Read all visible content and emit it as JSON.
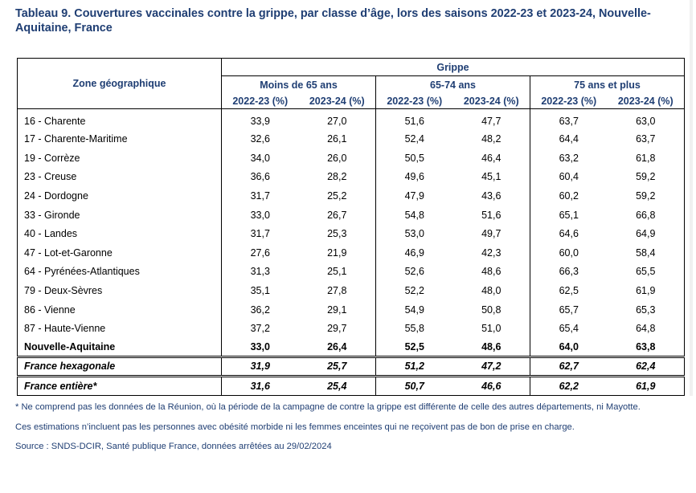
{
  "title": "Tableau 9. Couvertures vaccinales contre la grippe, par classe d’âge, lors des saisons 2022-23 et 2023-24, Nouvelle-Aquitaine, France",
  "table": {
    "zone_header": "Zone géographique",
    "group_header": "Grippe",
    "age_groups": [
      "Moins de 65 ans",
      "65-74 ans",
      "75 ans et plus"
    ],
    "season_headers": [
      "2022-23 (%)",
      "2023-24 (%)",
      "2022-23 (%)",
      "2023-24 (%)",
      "2022-23 (%)",
      "2023-24 (%)"
    ],
    "rows": [
      {
        "zone": "16 - Charente",
        "values": [
          "33,9",
          "27,0",
          "51,6",
          "47,7",
          "63,7",
          "63,0"
        ]
      },
      {
        "zone": "17 - Charente-Maritime",
        "values": [
          "32,6",
          "26,1",
          "52,4",
          "48,2",
          "64,4",
          "63,7"
        ]
      },
      {
        "zone": "19 - Corrèze",
        "values": [
          "34,0",
          "26,0",
          "50,5",
          "46,4",
          "63,2",
          "61,8"
        ]
      },
      {
        "zone": "23 - Creuse",
        "values": [
          "36,6",
          "28,2",
          "49,6",
          "45,1",
          "60,4",
          "59,2"
        ]
      },
      {
        "zone": "24 - Dordogne",
        "values": [
          "31,7",
          "25,2",
          "47,9",
          "43,6",
          "60,2",
          "59,2"
        ]
      },
      {
        "zone": "33 - Gironde",
        "values": [
          "33,0",
          "26,7",
          "54,8",
          "51,6",
          "65,1",
          "66,8"
        ]
      },
      {
        "zone": "40 - Landes",
        "values": [
          "31,7",
          "25,3",
          "53,0",
          "49,7",
          "64,6",
          "64,9"
        ]
      },
      {
        "zone": "47 - Lot-et-Garonne",
        "values": [
          "27,6",
          "21,9",
          "46,9",
          "42,3",
          "60,0",
          "58,4"
        ]
      },
      {
        "zone": "64 - Pyrénées-Atlantiques",
        "values": [
          "31,3",
          "25,1",
          "52,6",
          "48,6",
          "66,3",
          "65,5"
        ]
      },
      {
        "zone": "79 - Deux-Sèvres",
        "values": [
          "35,1",
          "27,8",
          "52,2",
          "48,0",
          "62,5",
          "61,9"
        ]
      },
      {
        "zone": "86 - Vienne",
        "values": [
          "36,2",
          "29,1",
          "54,9",
          "50,8",
          "65,7",
          "65,3"
        ]
      },
      {
        "zone": "87 - Haute-Vienne",
        "values": [
          "37,2",
          "29,7",
          "55,8",
          "51,0",
          "65,4",
          "64,8"
        ]
      }
    ],
    "region_row": {
      "zone": "Nouvelle-Aquitaine",
      "values": [
        "33,0",
        "26,4",
        "52,5",
        "48,6",
        "64,0",
        "63,8"
      ]
    },
    "hexagonale_row": {
      "zone": "France hexagonale",
      "values": [
        "31,9",
        "25,7",
        "51,2",
        "47,2",
        "62,7",
        "62,4"
      ]
    },
    "entiere_row": {
      "zone": "France entière*",
      "values": [
        "31,6",
        "25,4",
        "50,7",
        "46,6",
        "62,2",
        "61,9"
      ]
    }
  },
  "notes": {
    "footnote": "* Ne comprend pas les données de la Réunion, où la période de la campagne de contre la grippe est différente de celle des autres départements, ni Mayotte.",
    "estimation": "Ces estimations n’incluent pas les personnes avec obésité morbide ni les femmes enceintes qui ne reçoivent pas de bon de prise en charge.",
    "source": "Source : SNDS-DCIR, Santé publique France, données arrêtées au 29/02/2024"
  },
  "colors": {
    "heading_blue": "#1f3e73",
    "text": "#000000",
    "border": "#000000"
  }
}
